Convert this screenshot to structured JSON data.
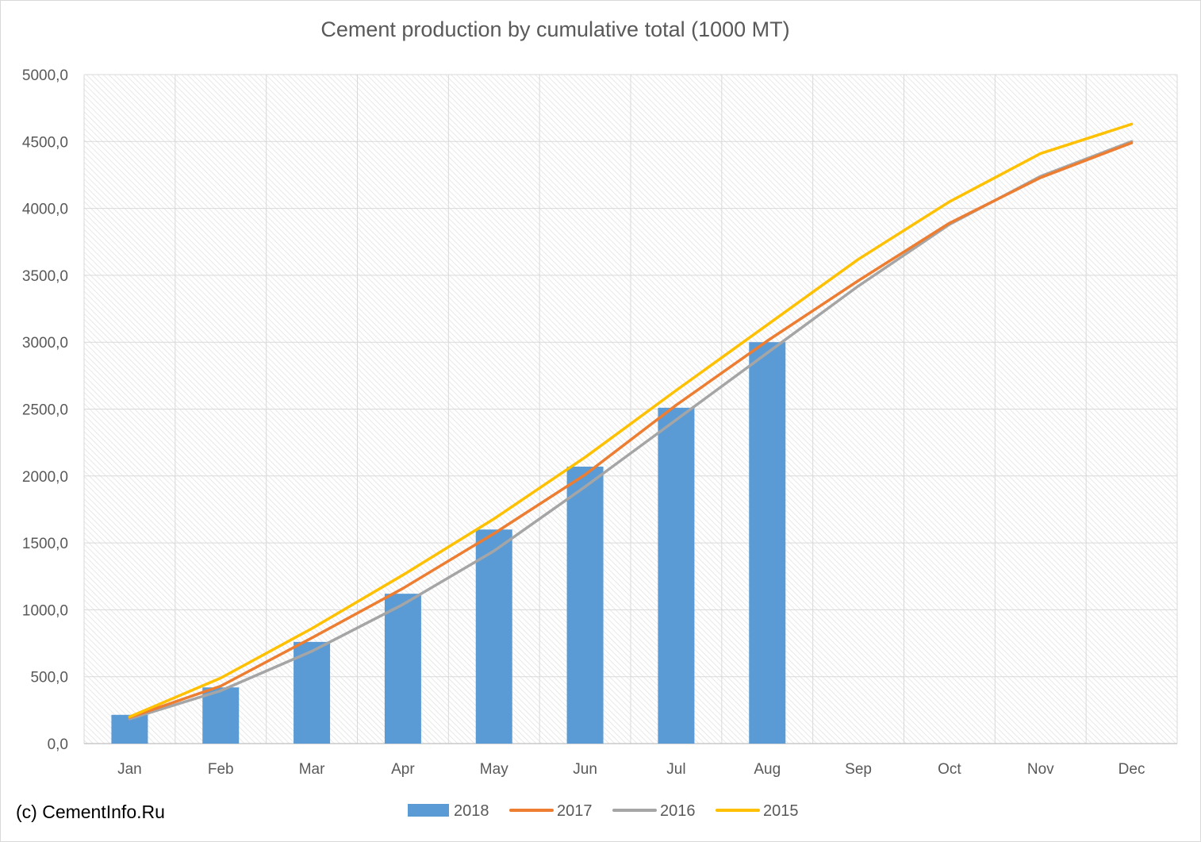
{
  "chart_data": {
    "type": "bar+line",
    "title": "Cement production by cumulative total (1000 MT)",
    "categories": [
      "Jan",
      "Feb",
      "Mar",
      "Apr",
      "May",
      "Jun",
      "Jul",
      "Aug",
      "Sep",
      "Oct",
      "Nov",
      "Dec"
    ],
    "ylim": [
      0,
      5000
    ],
    "yticks": [
      "0,0",
      "500,0",
      "1000,0",
      "1500,0",
      "2000,0",
      "2500,0",
      "3000,0",
      "3500,0",
      "4000,0",
      "4500,0",
      "5000,0"
    ],
    "grid": true,
    "legend_position": "bottom",
    "series": [
      {
        "name": "2018",
        "type": "bar",
        "color": "#5b9bd5",
        "values": [
          215,
          420,
          760,
          1120,
          1600,
          2070,
          2510,
          3000,
          null,
          null,
          null,
          null
        ]
      },
      {
        "name": "2017",
        "type": "line",
        "color": "#ed7d31",
        "values": [
          195,
          430,
          790,
          1160,
          1570,
          2010,
          2530,
          3010,
          3460,
          3890,
          4230,
          4490
        ]
      },
      {
        "name": "2016",
        "type": "line",
        "color": "#a5a5a5",
        "values": [
          185,
          395,
          690,
          1040,
          1440,
          1920,
          2420,
          2920,
          3420,
          3880,
          4240,
          4500
        ]
      },
      {
        "name": "2015",
        "type": "line",
        "color": "#ffc000",
        "values": [
          200,
          490,
          860,
          1260,
          1680,
          2140,
          2640,
          3130,
          3620,
          4050,
          4410,
          4630
        ]
      }
    ]
  },
  "copyright": "(c) CementInfo.Ru"
}
